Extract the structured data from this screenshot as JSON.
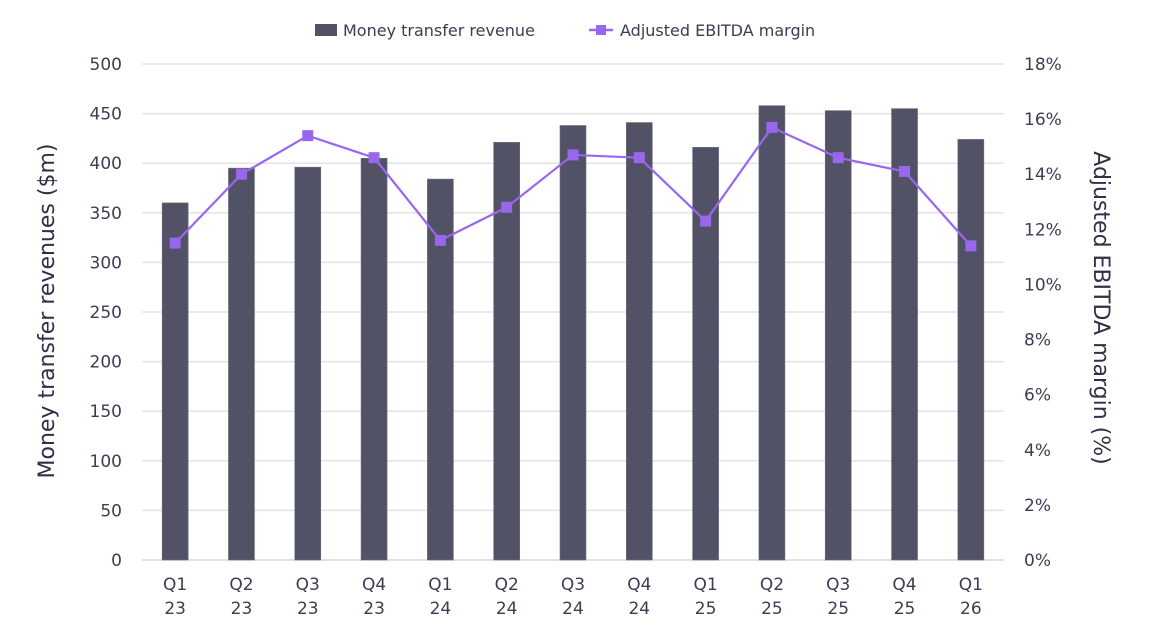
{
  "chart_data": {
    "type": "bar",
    "title": "",
    "categories": [
      [
        "Q1",
        "23"
      ],
      [
        "Q2",
        "23"
      ],
      [
        "Q3",
        "23"
      ],
      [
        "Q4",
        "23"
      ],
      [
        "Q1",
        "24"
      ],
      [
        "Q2",
        "24"
      ],
      [
        "Q3",
        "24"
      ],
      [
        "Q4",
        "24"
      ],
      [
        "Q1",
        "25"
      ],
      [
        "Q2",
        "25"
      ],
      [
        "Q3",
        "25"
      ],
      [
        "Q4",
        "25"
      ],
      [
        "Q1",
        "26"
      ]
    ],
    "series": [
      {
        "name": "Money transfer revenue",
        "type": "bar",
        "axis": "left",
        "color": "#515266",
        "values": [
          360,
          395,
          396,
          405,
          384,
          421,
          438,
          441,
          416,
          458,
          453,
          455,
          424
        ]
      },
      {
        "name": "Adjusted EBITDA margin",
        "type": "line",
        "marker": "square",
        "axis": "right",
        "color": "#9966ee",
        "values": [
          11.5,
          14.0,
          15.4,
          14.6,
          11.6,
          12.8,
          14.7,
          14.6,
          12.3,
          15.7,
          14.6,
          14.1,
          11.4
        ]
      }
    ],
    "ylabel": "Money transfer revenues ($m)",
    "ylim": [
      0,
      500
    ],
    "yticks": [
      0,
      50,
      100,
      150,
      200,
      250,
      300,
      350,
      400,
      450,
      500
    ],
    "ylabel_right": "Adjusted EBITDA margin (%)",
    "ylim_right": [
      0,
      18
    ],
    "yticks_right": [
      "0%",
      "2%",
      "4%",
      "6%",
      "8%",
      "10%",
      "12%",
      "14%",
      "16%",
      "18%"
    ],
    "xlabel": "",
    "grid": true,
    "legend": "top-center"
  }
}
